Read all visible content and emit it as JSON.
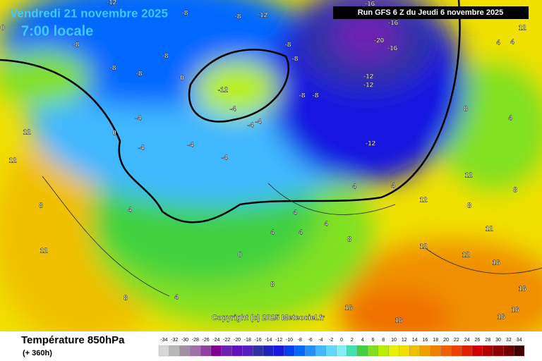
{
  "header": {
    "date": "Vendredi 21 novembre 2025",
    "time": "7:00 locale",
    "run": "Run GFS 6 Z du Jeudi 6 novembre 2025"
  },
  "map": {
    "copyright": "Copyright (c) 2025 Meteociel.fr",
    "labels": [
      "-12",
      "-8",
      "-8",
      "-12",
      "-8",
      "-16",
      "-16",
      "-20",
      "-16",
      "-8",
      "-8",
      "-8",
      "-8",
      "-8",
      "-12",
      "-12",
      "-8",
      "-8",
      "-12",
      "-4",
      "-4",
      "-4",
      "-4",
      "-4",
      "-12",
      "-4",
      "-4",
      "0",
      "0",
      "12",
      "12",
      "8",
      "4",
      "4",
      "4",
      "4",
      "8",
      "12",
      "12",
      "8",
      "8",
      "12",
      "4",
      "4",
      "4",
      "8",
      "0",
      "8",
      "12",
      "12",
      "12",
      "16",
      "16",
      "16",
      "16",
      "16",
      "16",
      "4",
      "4",
      "4",
      "12",
      "0",
      "4",
      "8"
    ]
  },
  "footer": {
    "title": "Température 850hPa",
    "subtitle": "(+ 360h)"
  },
  "legend": {
    "values": [
      -34,
      -32,
      -30,
      -28,
      -26,
      -24,
      -22,
      -20,
      -18,
      -16,
      -14,
      -12,
      -10,
      -8,
      -6,
      -4,
      -2,
      0,
      2,
      4,
      6,
      8,
      10,
      12,
      14,
      16,
      18,
      20,
      22,
      24,
      26,
      28,
      30,
      32,
      34
    ],
    "colors": [
      "#d8d8d8",
      "#b8b8b8",
      "#a090a0",
      "#a070a8",
      "#9040a0",
      "#800090",
      "#7020b0",
      "#6010c0",
      "#5020c0",
      "#3030a8",
      "#2020c0",
      "#1818e0",
      "#0040f0",
      "#0068ff",
      "#2090ff",
      "#40b8ff",
      "#60d8ff",
      "#80f0f0",
      "#40e0b0",
      "#40d040",
      "#80e020",
      "#b8f000",
      "#e8f000",
      "#f0e000",
      "#f0c000",
      "#f0a000",
      "#f08000",
      "#f06000",
      "#f04000",
      "#e02000",
      "#d00000",
      "#b00000",
      "#900000",
      "#700000",
      "#400000"
    ]
  }
}
